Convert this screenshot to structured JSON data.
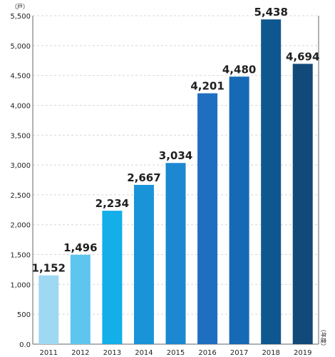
{
  "chart_data": {
    "type": "bar",
    "categories": [
      "2011",
      "2012",
      "2013",
      "2014",
      "2015",
      "2016",
      "2017",
      "2018",
      "2019"
    ],
    "values": [
      1152,
      1496,
      2234,
      2667,
      3034,
      4201,
      4480,
      5438,
      4694
    ],
    "value_labels": [
      "1,152",
      "1,496",
      "2,234",
      "2,667",
      "3,034",
      "4,201",
      "4,480",
      "5,438",
      "4,694"
    ],
    "colors": [
      "#9fd8f2",
      "#5ec5ef",
      "#14aee8",
      "#1a94d8",
      "#1b88d1",
      "#1f6fc0",
      "#1669b5",
      "#0f578f",
      "#114a79"
    ],
    "yticks": [
      "0.0",
      "500",
      "1,000",
      "1,500",
      "2,000",
      "2,500",
      "3,000",
      "3,500",
      "4,000",
      "4,500",
      "5,000",
      "5,500"
    ],
    "ylim": [
      0,
      5500
    ],
    "title": "",
    "xlabel": "（年度）",
    "ylabel": "（戸）",
    "grid": true
  }
}
